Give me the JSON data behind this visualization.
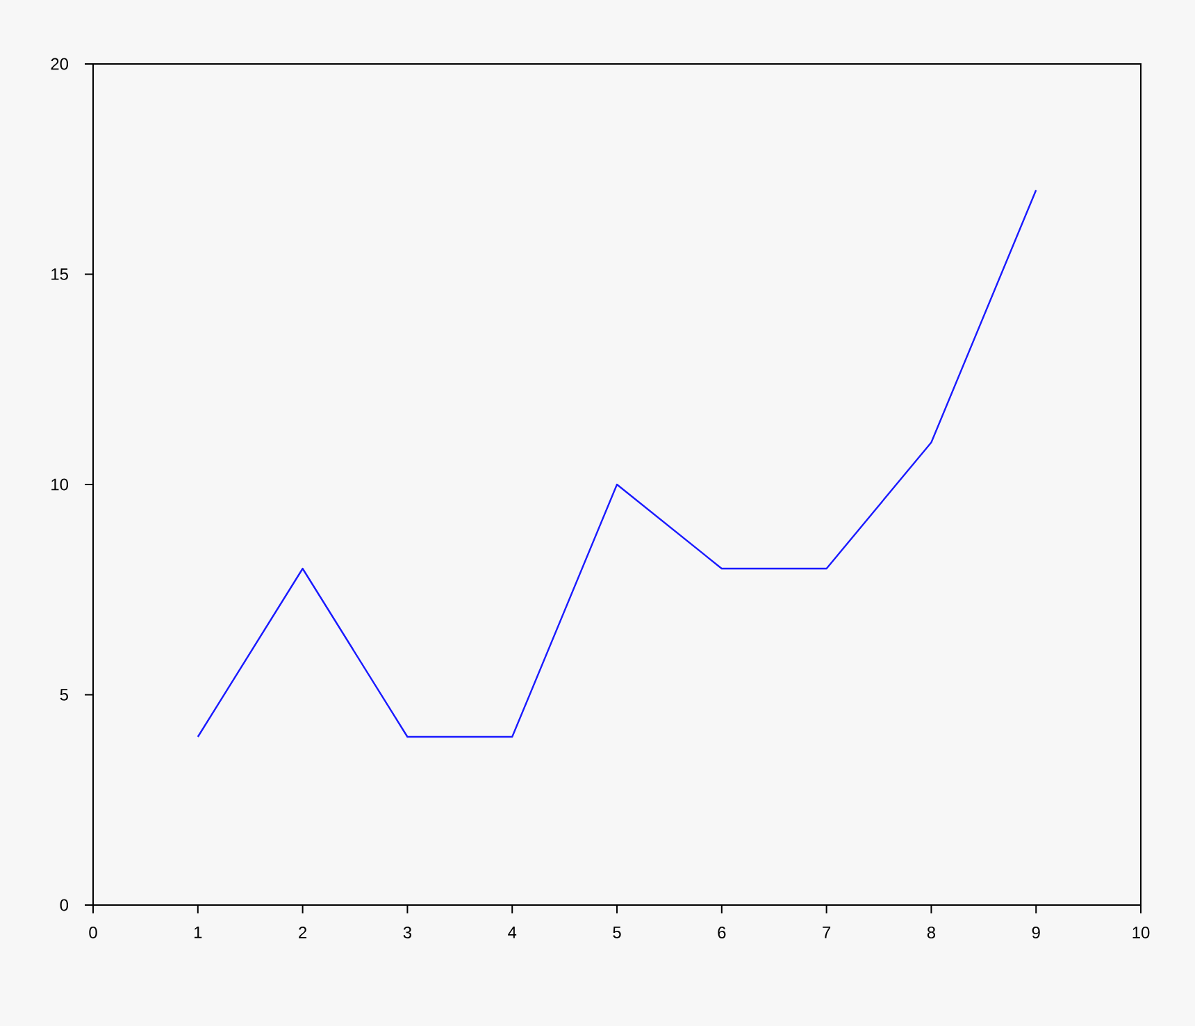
{
  "chart_data": {
    "type": "line",
    "x": [
      1,
      2,
      3,
      4,
      5,
      6,
      7,
      8,
      9
    ],
    "series": [
      {
        "color": "#1a1aff",
        "values": [
          4,
          8,
          4,
          4,
          10,
          8,
          8,
          11,
          17
        ]
      }
    ],
    "xlim": [
      0,
      10
    ],
    "ylim": [
      0,
      20
    ],
    "xticks": [
      0,
      1,
      2,
      3,
      4,
      5,
      6,
      7,
      8,
      9,
      10
    ],
    "yticks": [
      0,
      5,
      10,
      15,
      20
    ],
    "grid": false,
    "marker": "none",
    "line_style": "solid"
  }
}
